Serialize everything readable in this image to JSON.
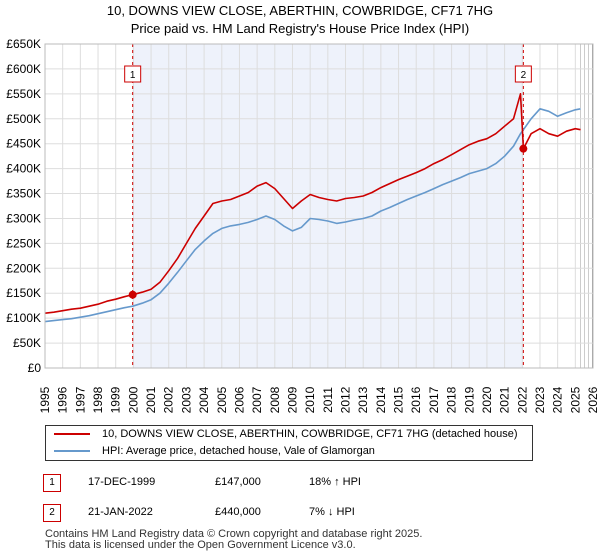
{
  "title_line1": "10, DOWNS VIEW CLOSE, ABERTHIN, COWBRIDGE, CF71 7HG",
  "title_line2": "Price paid vs. HM Land Registry's House Price Index (HPI)",
  "colors": {
    "property": "#cc0000",
    "hpi": "#6699cc",
    "shade": "#eef2fb",
    "grid": "#dddddd",
    "marker_border": "#cc0000"
  },
  "chart_data": {
    "type": "line",
    "xlabel": "",
    "ylabel": "",
    "xlim": [
      1995,
      2026
    ],
    "ylim": [
      0,
      650000
    ],
    "y_ticks": [
      0,
      50000,
      100000,
      150000,
      200000,
      250000,
      300000,
      350000,
      400000,
      450000,
      500000,
      550000,
      600000,
      650000
    ],
    "y_tick_labels": [
      "£0",
      "£50K",
      "£100K",
      "£150K",
      "£200K",
      "£250K",
      "£300K",
      "£350K",
      "£400K",
      "£450K",
      "£500K",
      "£550K",
      "£600K",
      "£650K"
    ],
    "x_ticks": [
      1995,
      1996,
      1997,
      1998,
      1999,
      2000,
      2001,
      2002,
      2003,
      2004,
      2005,
      2006,
      2007,
      2008,
      2009,
      2010,
      2011,
      2012,
      2013,
      2014,
      2015,
      2016,
      2017,
      2018,
      2019,
      2020,
      2021,
      2022,
      2023,
      2024,
      2025,
      2026
    ],
    "x_tick_labels": [
      "1995",
      "1996",
      "1997",
      "1998",
      "1999",
      "2000",
      "2001",
      "2002",
      "2003",
      "2004",
      "2005",
      "2006",
      "2007",
      "2008",
      "2009",
      "2010",
      "2011",
      "2012",
      "2013",
      "2014",
      "2015",
      "2016",
      "2017",
      "2018",
      "2019",
      "2020",
      "2021",
      "2022",
      "2023",
      "2024",
      "2025",
      "2026"
    ],
    "shaded_range": [
      1999.96,
      2022.06
    ],
    "hatched_from": 2025.2,
    "series": [
      {
        "name": "10, DOWNS VIEW CLOSE, ABERTHIN, COWBRIDGE, CF71 7HG (detached house)",
        "color": "#cc0000",
        "x": [
          1995,
          1995.5,
          1996,
          1996.5,
          1997,
          1997.5,
          1998,
          1998.5,
          1999,
          1999.5,
          1999.96,
          2000.5,
          2001,
          2001.5,
          2002,
          2002.5,
          2003,
          2003.5,
          2004,
          2004.5,
          2005,
          2005.5,
          2006,
          2006.5,
          2007,
          2007.5,
          2008,
          2008.5,
          2009,
          2009.5,
          2010,
          2010.5,
          2011,
          2011.5,
          2012,
          2012.5,
          2013,
          2013.5,
          2014,
          2014.5,
          2015,
          2015.5,
          2016,
          2016.5,
          2017,
          2017.5,
          2018,
          2018.5,
          2019,
          2019.5,
          2020,
          2020.5,
          2021,
          2021.5,
          2021.9,
          2022.06,
          2022.5,
          2023,
          2023.5,
          2024,
          2024.5,
          2025,
          2025.3
        ],
        "values": [
          110000,
          112000,
          115000,
          118000,
          120000,
          124000,
          128000,
          134000,
          138000,
          143000,
          147000,
          152000,
          158000,
          172000,
          195000,
          220000,
          250000,
          280000,
          305000,
          330000,
          335000,
          338000,
          345000,
          352000,
          365000,
          372000,
          360000,
          340000,
          320000,
          335000,
          348000,
          342000,
          338000,
          335000,
          340000,
          342000,
          345000,
          352000,
          362000,
          370000,
          378000,
          385000,
          392000,
          400000,
          410000,
          418000,
          428000,
          438000,
          448000,
          455000,
          460000,
          470000,
          485000,
          500000,
          550000,
          440000,
          470000,
          480000,
          470000,
          465000,
          475000,
          480000,
          478000
        ]
      },
      {
        "name": "HPI: Average price, detached house, Vale of Glamorgan",
        "color": "#6699cc",
        "x": [
          1995,
          1995.5,
          1996,
          1996.5,
          1997,
          1997.5,
          1998,
          1998.5,
          1999,
          1999.5,
          1999.96,
          2000.5,
          2001,
          2001.5,
          2002,
          2002.5,
          2003,
          2003.5,
          2004,
          2004.5,
          2005,
          2005.5,
          2006,
          2006.5,
          2007,
          2007.5,
          2008,
          2008.5,
          2009,
          2009.5,
          2010,
          2010.5,
          2011,
          2011.5,
          2012,
          2012.5,
          2013,
          2013.5,
          2014,
          2014.5,
          2015,
          2015.5,
          2016,
          2016.5,
          2017,
          2017.5,
          2018,
          2018.5,
          2019,
          2019.5,
          2020,
          2020.5,
          2021,
          2021.5,
          2021.9,
          2022.06,
          2022.5,
          2023,
          2023.5,
          2024,
          2024.5,
          2025,
          2025.3
        ],
        "values": [
          93000,
          95000,
          97000,
          99000,
          102000,
          105000,
          109000,
          113000,
          117000,
          121000,
          124000,
          130000,
          137000,
          150000,
          170000,
          192000,
          215000,
          238000,
          255000,
          270000,
          280000,
          285000,
          288000,
          292000,
          298000,
          305000,
          298000,
          285000,
          275000,
          282000,
          300000,
          298000,
          295000,
          290000,
          293000,
          297000,
          300000,
          305000,
          315000,
          322000,
          330000,
          338000,
          345000,
          352000,
          360000,
          368000,
          375000,
          382000,
          390000,
          395000,
          400000,
          410000,
          425000,
          445000,
          470000,
          478000,
          500000,
          520000,
          515000,
          505000,
          512000,
          518000,
          520000
        ]
      }
    ],
    "markers": [
      {
        "label": "1",
        "x": 1999.96,
        "y": 147000
      },
      {
        "label": "2",
        "x": 2022.06,
        "y": 440000
      }
    ]
  },
  "legend": {
    "property_label": "10, DOWNS VIEW CLOSE, ABERTHIN, COWBRIDGE, CF71 7HG (detached house)",
    "hpi_label": "HPI: Average price, detached house, Vale of Glamorgan"
  },
  "transactions": [
    {
      "num": "1",
      "date": "17-DEC-1999",
      "price": "£147,000",
      "hpi": "18% ↑ HPI"
    },
    {
      "num": "2",
      "date": "21-JAN-2022",
      "price": "£440,000",
      "hpi": "7% ↓ HPI"
    }
  ],
  "footer_line1": "Contains HM Land Registry data © Crown copyright and database right 2025.",
  "footer_line2": "This data is licensed under the Open Government Licence v3.0."
}
